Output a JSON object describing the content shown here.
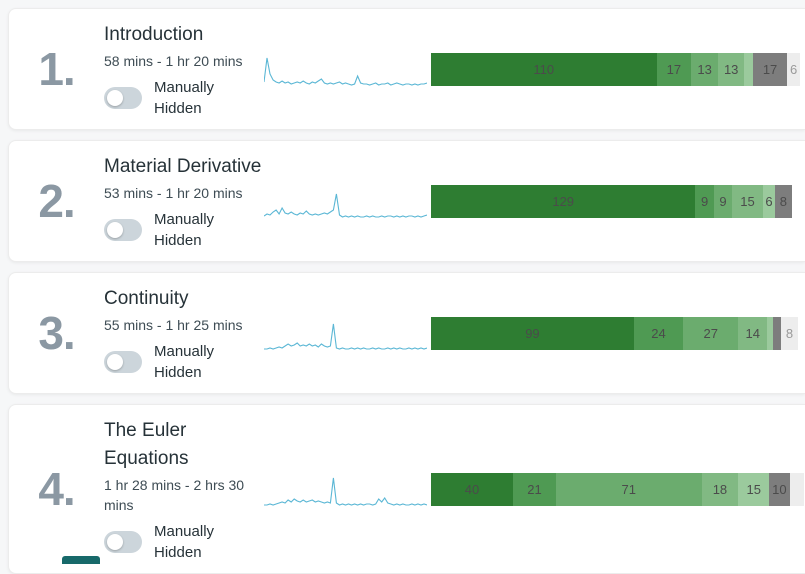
{
  "colors": {
    "sparkline": "#5bb7d5",
    "number": "#8b98a3",
    "toggle_track": "#ccd5db",
    "bar_dark_green": "#2e7d32",
    "bar_gray": "#7d7d7d",
    "bar_light_gray": "#ededed",
    "bottom_fragment_teal": "#17696a"
  },
  "rows": [
    {
      "index": "1.",
      "title": "Introduction",
      "duration": "58 mins - 1 hr 20 mins",
      "toggle_label": "Manually Hidden",
      "toggle_state": "off",
      "sparkline": [
        6,
        30,
        14,
        8,
        6,
        5,
        7,
        5,
        6,
        4,
        5,
        6,
        5,
        7,
        5,
        4,
        6,
        5,
        7,
        9,
        5,
        4,
        5,
        4,
        5,
        6,
        4,
        5,
        4,
        3,
        4,
        12,
        5,
        4,
        4,
        3,
        4,
        5,
        3,
        4,
        4,
        5,
        3,
        4,
        5,
        4,
        3,
        4,
        4,
        3,
        4,
        3,
        4,
        4,
        5
      ],
      "bar_segments": [
        {
          "value": 110,
          "label": "110",
          "color": "#2e7d32"
        },
        {
          "value": 17,
          "label": "17",
          "color": "#4f9a53"
        },
        {
          "value": 13,
          "label": "13",
          "color": "#6bac6e"
        },
        {
          "value": 13,
          "label": "13",
          "color": "#81b983"
        },
        {
          "value": 4,
          "label": "",
          "color": "#9bca9d"
        },
        {
          "value": 17,
          "label": "17",
          "color": "#7d7d7d"
        },
        {
          "value": 6,
          "label": "6",
          "color": "#ededed",
          "light": true
        }
      ]
    },
    {
      "index": "2.",
      "title": "Material Derivative",
      "duration": "53 mins - 1 hr 20 mins",
      "toggle_label": "Manually Hidden",
      "toggle_state": "off",
      "sparkline": [
        4,
        6,
        5,
        8,
        10,
        6,
        12,
        7,
        6,
        8,
        6,
        5,
        7,
        6,
        9,
        6,
        5,
        6,
        5,
        6,
        7,
        6,
        8,
        10,
        26,
        5,
        3,
        4,
        3,
        4,
        3,
        4,
        3,
        3,
        4,
        3,
        4,
        3,
        3,
        4,
        3,
        4,
        4,
        3,
        4,
        3,
        4,
        3,
        4,
        4,
        3,
        4,
        3,
        4,
        5
      ],
      "bar_segments": [
        {
          "value": 129,
          "label": "129",
          "color": "#2e7d32"
        },
        {
          "value": 9,
          "label": "9",
          "color": "#4f9a53"
        },
        {
          "value": 9,
          "label": "9",
          "color": "#6bac6e"
        },
        {
          "value": 15,
          "label": "15",
          "color": "#81b983"
        },
        {
          "value": 6,
          "label": "6",
          "color": "#9bca9d"
        },
        {
          "value": 8,
          "label": "8",
          "color": "#7d7d7d"
        }
      ]
    },
    {
      "index": "3.",
      "title": "Continuity",
      "duration": "55 mins - 1 hr 25 mins",
      "toggle_label": "Manually Hidden",
      "toggle_state": "off",
      "sparkline": [
        3,
        3,
        4,
        3,
        4,
        5,
        4,
        6,
        8,
        6,
        7,
        9,
        6,
        7,
        6,
        8,
        6,
        7,
        5,
        8,
        6,
        5,
        6,
        28,
        4,
        3,
        4,
        3,
        3,
        4,
        3,
        4,
        3,
        4,
        3,
        3,
        4,
        3,
        4,
        3,
        3,
        4,
        3,
        4,
        3,
        4,
        3,
        3,
        4,
        3,
        4,
        3,
        4,
        3,
        4
      ],
      "bar_segments": [
        {
          "value": 99,
          "label": "99",
          "color": "#2e7d32"
        },
        {
          "value": 24,
          "label": "24",
          "color": "#4f9a53"
        },
        {
          "value": 27,
          "label": "27",
          "color": "#6bac6e"
        },
        {
          "value": 14,
          "label": "14",
          "color": "#81b983"
        },
        {
          "value": 3,
          "label": "",
          "color": "#9bca9d"
        },
        {
          "value": 4,
          "label": "",
          "color": "#7d7d7d"
        },
        {
          "value": 8,
          "label": "8",
          "color": "#ededed",
          "light": true
        }
      ]
    },
    {
      "index": "4.",
      "title": "The Euler Equations",
      "duration": "1 hr 28 mins - 2 hrs 30 mins",
      "toggle_label": "Manually Hidden",
      "toggle_state": "off",
      "sparkline": [
        3,
        3,
        4,
        3,
        4,
        5,
        6,
        5,
        8,
        6,
        9,
        7,
        6,
        8,
        6,
        7,
        8,
        6,
        7,
        6,
        5,
        6,
        5,
        30,
        5,
        3,
        4,
        3,
        4,
        3,
        4,
        3,
        4,
        3,
        4,
        4,
        3,
        4,
        9,
        6,
        10,
        5,
        4,
        3,
        4,
        3,
        4,
        3,
        3,
        4,
        3,
        4,
        3,
        4,
        3
      ],
      "bar_segments": [
        {
          "value": 40,
          "label": "40",
          "color": "#2e7d32"
        },
        {
          "value": 21,
          "label": "21",
          "color": "#4f9a53"
        },
        {
          "value": 71,
          "label": "71",
          "color": "#6bac6e"
        },
        {
          "value": 18,
          "label": "18",
          "color": "#81b983"
        },
        {
          "value": 15,
          "label": "15",
          "color": "#9bca9d"
        },
        {
          "value": 10,
          "label": "10",
          "color": "#7d7d7d"
        },
        {
          "value": 7,
          "label": "",
          "color": "#ededed",
          "light": true
        }
      ]
    }
  ]
}
